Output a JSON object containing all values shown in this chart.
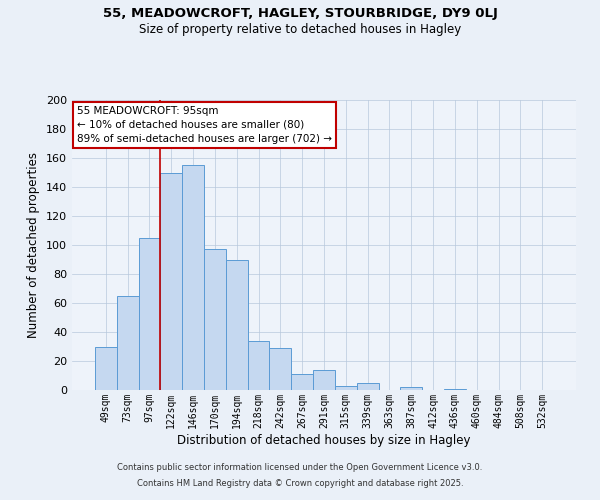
{
  "title": "55, MEADOWCROFT, HAGLEY, STOURBRIDGE, DY9 0LJ",
  "subtitle": "Size of property relative to detached houses in Hagley",
  "xlabel": "Distribution of detached houses by size in Hagley",
  "ylabel": "Number of detached properties",
  "bar_labels": [
    "49sqm",
    "73sqm",
    "97sqm",
    "122sqm",
    "146sqm",
    "170sqm",
    "194sqm",
    "218sqm",
    "242sqm",
    "267sqm",
    "291sqm",
    "315sqm",
    "339sqm",
    "363sqm",
    "387sqm",
    "412sqm",
    "436sqm",
    "460sqm",
    "484sqm",
    "508sqm",
    "532sqm"
  ],
  "bar_values": [
    30,
    65,
    105,
    150,
    155,
    97,
    90,
    34,
    29,
    11,
    14,
    3,
    5,
    0,
    2,
    0,
    1,
    0,
    0,
    0,
    0
  ],
  "bar_color": "#c5d8f0",
  "bar_edge_color": "#5b9bd5",
  "vline_x": 2.5,
  "vline_color": "#c00000",
  "ylim": [
    0,
    200
  ],
  "yticks": [
    0,
    20,
    40,
    60,
    80,
    100,
    120,
    140,
    160,
    180,
    200
  ],
  "annotation_title": "55 MEADOWCROFT: 95sqm",
  "annotation_line1": "← 10% of detached houses are smaller (80)",
  "annotation_line2": "89% of semi-detached houses are larger (702) →",
  "annotation_box_color": "#ffffff",
  "annotation_box_edge": "#c00000",
  "footer1": "Contains HM Land Registry data © Crown copyright and database right 2025.",
  "footer2": "Contains public sector information licensed under the Open Government Licence v3.0.",
  "bg_color": "#eaf0f8",
  "plot_bg_color": "#eef3fa"
}
